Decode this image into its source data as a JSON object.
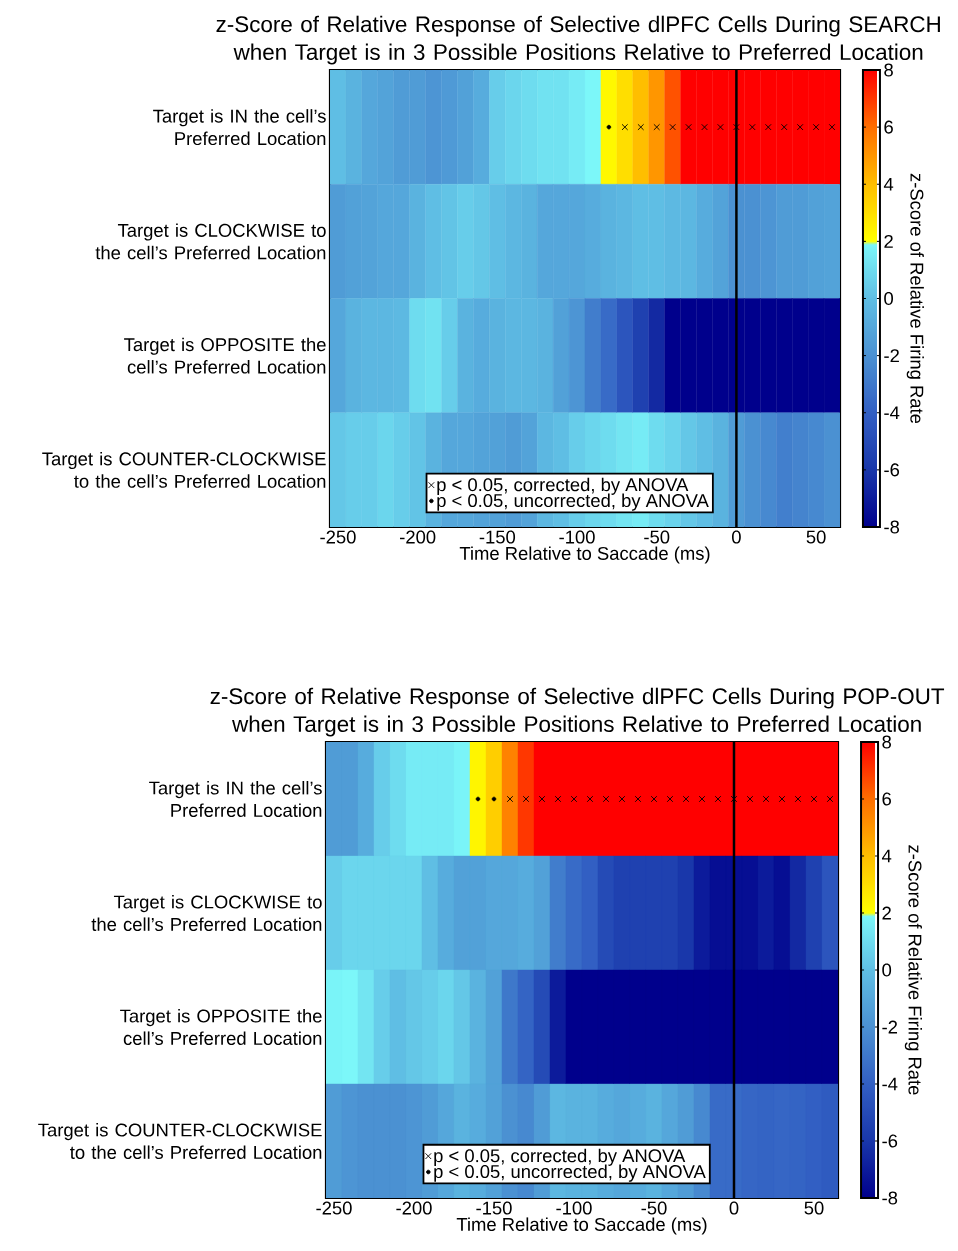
{
  "chart_data": [
    {
      "type": "heatmap",
      "title": "z-Score of Relative Response of Selective dlPFC Cells During SEARCH when Target is in 3 Possible Positions Relative to Preferred Location",
      "xlabel": "Time Relative to Saccade (ms)",
      "clabel": "z-Score of Relative Firing Rate",
      "x": [
        -250,
        -240,
        -230,
        -220,
        -210,
        -200,
        -190,
        -180,
        -170,
        -160,
        -150,
        -140,
        -130,
        -120,
        -110,
        -100,
        -90,
        -80,
        -70,
        -60,
        -50,
        -40,
        -30,
        -20,
        -10,
        0,
        10,
        20,
        30,
        40,
        50,
        60
      ],
      "xlim": [
        -255,
        65
      ],
      "xticks": [
        -250,
        -200,
        -150,
        -100,
        -50,
        0,
        50
      ],
      "y_categories": [
        "Target is IN the cell’s Preferred Location",
        "Target is CLOCKWISE to the cell’s Preferred Location",
        "Target is OPPOSITE the cell’s Preferred Location",
        "Target is COUNTER-CLOCKWISE to the cell’s Preferred Location"
      ],
      "cells": [
        [
          0,
          -0.5,
          -1,
          -1.2,
          -1.5,
          -1.5,
          -1.8,
          -1.6,
          -1.3,
          -0.8,
          0.5,
          0.8,
          1,
          1.2,
          1.2,
          1.5,
          1.9,
          2.2,
          3,
          4,
          5,
          6.5,
          8,
          8,
          8,
          8,
          8,
          8,
          8,
          8,
          8,
          8
        ],
        [
          -1.5,
          -1.3,
          -1.2,
          -1,
          -1,
          -0.5,
          0,
          0.2,
          0.5,
          0.3,
          0,
          -0.3,
          -0.5,
          -1,
          -1,
          -1,
          -0.8,
          -0.5,
          -0.3,
          0,
          0,
          -0.2,
          -0.3,
          -0.8,
          -1.2,
          -2,
          -2,
          -1.8,
          -1.5,
          -1.5,
          -1.3,
          -1.2
        ],
        [
          -1,
          -0.5,
          -0.3,
          -0.3,
          -0.2,
          1,
          1.2,
          0.5,
          -0.5,
          -0.8,
          -0.5,
          -0.3,
          -0.3,
          -0.5,
          -1.3,
          -1.8,
          -2.8,
          -3.5,
          -4.5,
          -5.5,
          -6.5,
          -8,
          -8,
          -8,
          -8,
          -8,
          -8,
          -8,
          -8,
          -8,
          -8,
          -8
        ],
        [
          0.3,
          0.5,
          0.5,
          0.8,
          0.5,
          0.2,
          -0.5,
          -1,
          -1,
          -1.2,
          -1.3,
          -1.5,
          -1.2,
          -0.3,
          0,
          0.5,
          0.8,
          1,
          1.3,
          1.5,
          1,
          0.7,
          0.3,
          0,
          -0.5,
          -1.5,
          -2,
          -2.3,
          -2.7,
          -2.5,
          -2.3,
          -2
        ]
      ],
      "clim": [
        -8,
        8
      ],
      "cticks": [
        -8,
        -6,
        -4,
        -2,
        0,
        2,
        4,
        6,
        8
      ],
      "ref_lines": [
        {
          "axis": "x",
          "value": 0,
          "color": "#000000"
        }
      ],
      "legend": "bottom",
      "series": [
        {
          "name": "p < 0.05, corrected, by ANOVA",
          "type": "scatter",
          "marker": "cross",
          "color": "#000000",
          "x": [
            -70,
            -60,
            -50,
            -40,
            -30,
            -20,
            -10,
            0,
            10,
            20,
            30,
            40,
            50,
            60
          ],
          "values": [
            0,
            0,
            0,
            0,
            0,
            0,
            0,
            0,
            0,
            0,
            0,
            0,
            0,
            0
          ]
        },
        {
          "name": "p < 0.05, uncorrected, by ANOVA",
          "type": "scatter",
          "marker": "circle",
          "color": "#000000",
          "x": [
            -80
          ],
          "values": [
            0
          ]
        }
      ]
    },
    {
      "type": "heatmap",
      "title": "z-Score of Relative Response of Selective dlPFC Cells During POP-OUT when Target is in 3 Possible Positions Relative to Preferred Location",
      "xlabel": "Time Relative to Saccade (ms)",
      "clabel": "z-Score of Relative Firing Rate",
      "x": [
        -250,
        -240,
        -230,
        -220,
        -210,
        -200,
        -190,
        -180,
        -170,
        -160,
        -150,
        -140,
        -130,
        -120,
        -110,
        -100,
        -90,
        -80,
        -70,
        -60,
        -50,
        -40,
        -30,
        -20,
        -10,
        0,
        10,
        20,
        30,
        40,
        50,
        60
      ],
      "xlim": [
        -255,
        65
      ],
      "xticks": [
        -250,
        -200,
        -150,
        -100,
        -50,
        0,
        50
      ],
      "y_categories": [
        "Target is IN the cell’s Preferred Location",
        "Target is CLOCKWISE to the cell’s Preferred Location",
        "Target is OPPOSITE the cell’s Preferred Location",
        "Target is COUNTER-CLOCKWISE to the cell’s Preferred Location"
      ],
      "cells": [
        [
          -1.5,
          -1.5,
          -0.8,
          0.5,
          1,
          1.5,
          1.5,
          1.5,
          1.8,
          2.3,
          3.5,
          5.5,
          7,
          8,
          8,
          8,
          8,
          8,
          8,
          8,
          8,
          8,
          8,
          8,
          8,
          8,
          8,
          8,
          8,
          8,
          8,
          8
        ],
        [
          0.5,
          0.8,
          0.8,
          0.8,
          0.8,
          0.8,
          0,
          -0.8,
          -1.3,
          -1.3,
          -1,
          -1,
          -0.8,
          -1.3,
          -2.8,
          -3.5,
          -4,
          -5,
          -5.5,
          -5.5,
          -5.5,
          -5.5,
          -6,
          -7,
          -7.5,
          -7.5,
          -7.5,
          -7,
          -7.5,
          -6.5,
          -5.5,
          -4.5
        ],
        [
          1.8,
          1.9,
          1.3,
          0.5,
          0,
          0.3,
          0.5,
          0.8,
          0.3,
          -0.5,
          -1.3,
          -3,
          -3.8,
          -5,
          -7,
          -8,
          -8,
          -8,
          -8,
          -8,
          -8,
          -8,
          -8,
          -8,
          -8,
          -8,
          -8,
          -8,
          -8,
          -8,
          -8,
          -8
        ],
        [
          -1.5,
          -1.8,
          -2,
          -2,
          -2,
          -1.8,
          -1.5,
          -1,
          -0.5,
          -0.8,
          -1.3,
          -2,
          -2.3,
          -1.5,
          -0.3,
          -0.5,
          -0.5,
          -0.8,
          -1,
          -0.8,
          -0.5,
          -1,
          -1.5,
          -2.3,
          -3.5,
          -3.5,
          -3.7,
          -3.8,
          -3.7,
          -3.8,
          -4,
          -4.2
        ]
      ],
      "clim": [
        -8,
        8
      ],
      "cticks": [
        -8,
        -6,
        -4,
        -2,
        0,
        2,
        4,
        6,
        8
      ],
      "ref_lines": [
        {
          "axis": "x",
          "value": 0,
          "color": "#000000"
        }
      ],
      "legend": "bottom",
      "series": [
        {
          "name": "p < 0.05, corrected, by ANOVA",
          "type": "scatter",
          "marker": "cross",
          "color": "#000000",
          "x": [
            -140,
            -130,
            -120,
            -110,
            -100,
            -90,
            -80,
            -70,
            -60,
            -50,
            -40,
            -30,
            -20,
            -10,
            0,
            10,
            20,
            30,
            40,
            50,
            60
          ],
          "values": [
            0,
            0,
            0,
            0,
            0,
            0,
            0,
            0,
            0,
            0,
            0,
            0,
            0,
            0,
            0,
            0,
            0,
            0,
            0,
            0,
            0
          ]
        },
        {
          "name": "p < 0.05, uncorrected, by ANOVA",
          "type": "scatter",
          "marker": "circle",
          "color": "#000000",
          "x": [
            -160,
            -150
          ],
          "values": [
            0,
            0
          ]
        }
      ]
    }
  ]
}
